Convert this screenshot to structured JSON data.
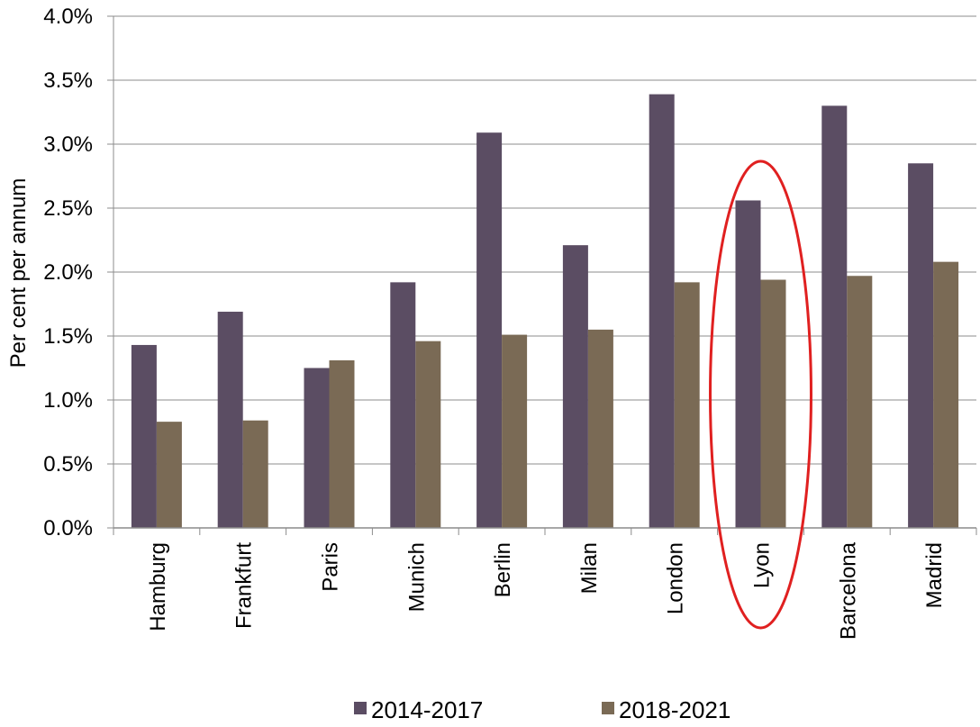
{
  "chart_data": {
    "type": "bar",
    "title": "",
    "xlabel": "",
    "ylabel": "Per cent per annum",
    "ylim": [
      0,
      4.0
    ],
    "yticks": [
      "0.0%",
      "0.5%",
      "1.0%",
      "1.5%",
      "2.0%",
      "2.5%",
      "3.0%",
      "3.5%",
      "4.0%"
    ],
    "grid": true,
    "legend_position": "bottom",
    "categories": [
      "Hamburg",
      "Frankfurt",
      "Paris",
      "Munich",
      "Berlin",
      "Milan",
      "London",
      "Lyon",
      "Barcelona",
      "Madrid"
    ],
    "series": [
      {
        "name": "2014-2017",
        "color": "#5b4d63",
        "values": [
          1.43,
          1.69,
          1.25,
          1.92,
          3.09,
          2.21,
          3.39,
          2.56,
          3.3,
          2.85
        ]
      },
      {
        "name": "2018-2021",
        "color": "#7a6a55",
        "values": [
          0.83,
          0.84,
          1.31,
          1.46,
          1.51,
          1.55,
          1.92,
          1.94,
          1.97,
          2.08
        ]
      }
    ],
    "annotation": {
      "shape": "ellipse",
      "category": "Lyon",
      "color": "#e02020"
    }
  }
}
